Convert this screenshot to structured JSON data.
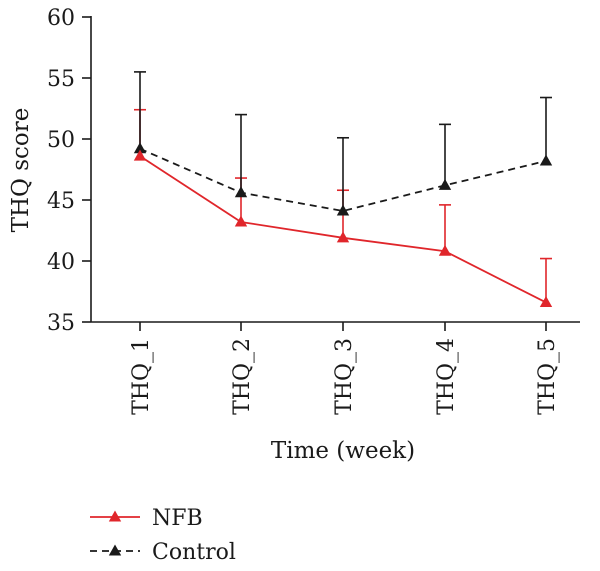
{
  "chart_data": {
    "type": "line",
    "categories": [
      "THQ_1",
      "THQ_2",
      "THQ_3",
      "THQ_4",
      "THQ_5"
    ],
    "xlabel": "Time (week)",
    "ylabel": "THQ score",
    "ylim": [
      35,
      60
    ],
    "yticks": [
      35,
      40,
      45,
      50,
      55,
      60
    ],
    "grid": false,
    "legend_position": "bottom-left",
    "series": [
      {
        "name": "NFB",
        "values": [
          48.6,
          43.2,
          41.9,
          40.8,
          36.6
        ],
        "error_upper": [
          52.4,
          46.8,
          45.8,
          44.6,
          40.2
        ],
        "color": "#e0262b",
        "line_style": "solid",
        "marker": "triangle"
      },
      {
        "name": "Control",
        "values": [
          49.2,
          45.6,
          44.1,
          46.2,
          48.2
        ],
        "error_upper": [
          55.5,
          52.0,
          50.1,
          51.2,
          53.4
        ],
        "color": "#1a1a1a",
        "line_style": "dashed",
        "marker": "triangle"
      }
    ]
  }
}
